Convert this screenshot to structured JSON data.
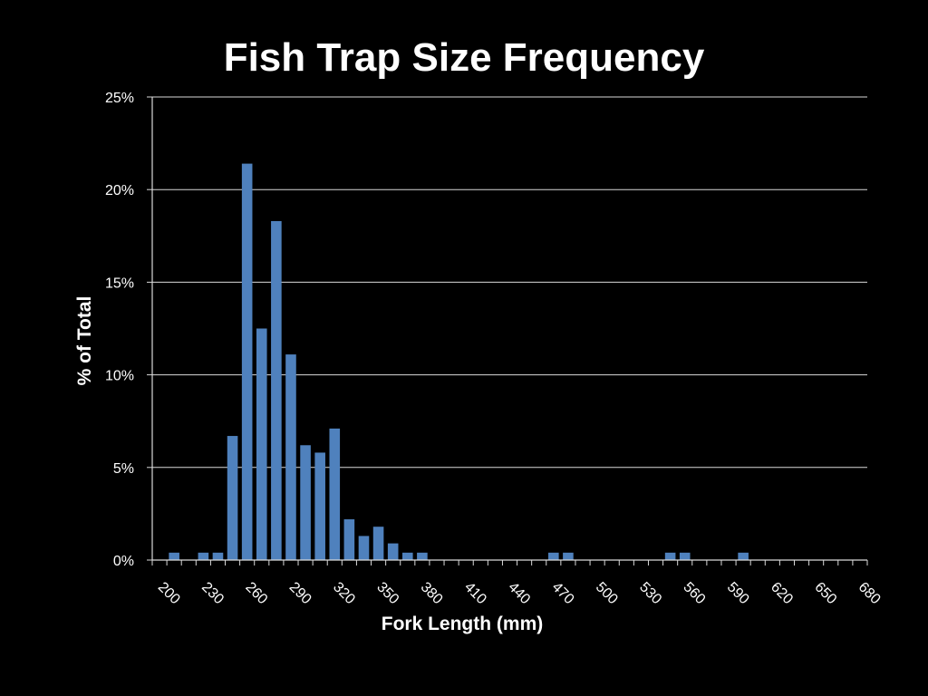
{
  "chart_data": {
    "type": "bar",
    "title": "Fish Trap Size Frequency",
    "xlabel": "Fork Length (mm)",
    "ylabel": "% of Total",
    "ylim": [
      0,
      25
    ],
    "y_ticks": [
      "0%",
      "5%",
      "10%",
      "15%",
      "20%",
      "25%"
    ],
    "y_tick_values": [
      0,
      5,
      10,
      15,
      20,
      25
    ],
    "x_tick_labels": [
      "200",
      "230",
      "260",
      "290",
      "320",
      "350",
      "380",
      "410",
      "440",
      "470",
      "500",
      "530",
      "560",
      "590",
      "620",
      "650",
      "680"
    ],
    "categories": [
      200,
      210,
      220,
      230,
      240,
      250,
      260,
      270,
      280,
      290,
      300,
      310,
      320,
      330,
      340,
      350,
      360,
      370,
      380,
      390,
      400,
      410,
      420,
      430,
      440,
      450,
      460,
      470,
      480,
      490,
      500,
      510,
      520,
      530,
      540,
      550,
      560,
      570,
      580,
      590,
      600,
      610,
      620,
      630,
      640,
      650,
      660,
      670,
      680
    ],
    "values": [
      0,
      0.4,
      0,
      0.4,
      0.4,
      6.7,
      21.4,
      12.5,
      18.3,
      11.1,
      6.2,
      5.8,
      7.1,
      2.2,
      1.3,
      1.8,
      0.9,
      0.4,
      0.4,
      0,
      0,
      0,
      0,
      0,
      0,
      0,
      0,
      0.4,
      0.4,
      0,
      0,
      0,
      0,
      0,
      0,
      0.4,
      0.4,
      0,
      0,
      0,
      0.4,
      0,
      0,
      0,
      0,
      0,
      0,
      0,
      0
    ],
    "bar_color": "#4f81bd",
    "grid": true,
    "legend": "none"
  }
}
